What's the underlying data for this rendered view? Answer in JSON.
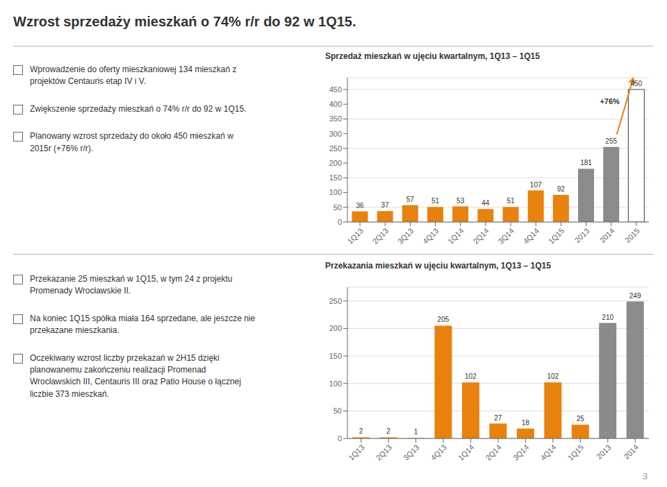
{
  "title": "Wzrost sprzedaży mieszkań o 74% r/r do 92 w 1Q15.",
  "annotations": [
    "3"
  ],
  "chart_data": [
    {
      "type": "bar",
      "title": "Sprzedaż mieszkań w ujęciu kwartalnym, 1Q13 – 1Q15",
      "categories": [
        "1Q13",
        "2Q13",
        "3Q13",
        "4Q13",
        "1Q14",
        "2Q14",
        "3Q14",
        "4Q14",
        "1Q15",
        "2013",
        "2014",
        "2015"
      ],
      "values": [
        36,
        37,
        57,
        51,
        53,
        44,
        51,
        107,
        92,
        181,
        255,
        450
      ],
      "colors": [
        "#E8820C",
        "#E8820C",
        "#E8820C",
        "#E8820C",
        "#E8820C",
        "#E8820C",
        "#E8820C",
        "#E8820C",
        "#E8820C",
        "#8B8B8B",
        "#8B8B8B",
        "#FFFFFF"
      ],
      "ylim": [
        0,
        490
      ],
      "yticks": [
        0,
        50,
        100,
        150,
        200,
        250,
        300,
        350,
        400,
        450
      ],
      "grid": true,
      "data_labels": true,
      "annotations": [
        "Wprowadzenie do oferty mieszkaniowej 134 mieszkań z\nprojektów Centauris etap IV i V.",
        "Zwiększenie sprzedaży mieszkań o 74% r/r do 92 w 1Q15.",
        "Planowany wzrost sprzedaży do około 450 mieszkań w\n2015r (+76% r/r).",
        {
          "text": "+76%",
          "color": "#E8820C"
        }
      ]
    },
    {
      "type": "bar",
      "title": "Przekazania mieszkań w ujęciu kwartalnym, 1Q13 – 1Q15",
      "categories": [
        "1Q13",
        "2Q13",
        "3Q13",
        "4Q13",
        "1Q14",
        "2Q14",
        "3Q14",
        "4Q14",
        "1Q15",
        "2013",
        "2014"
      ],
      "values": [
        2,
        2,
        1,
        205,
        102,
        27,
        18,
        102,
        25,
        210,
        249
      ],
      "colors": [
        "#E8820C",
        "#E8820C",
        "#E8820C",
        "#E8820C",
        "#E8820C",
        "#E8820C",
        "#E8820C",
        "#E8820C",
        "#E8820C",
        "#8B8B8B",
        "#8B8B8B"
      ],
      "ylim": [
        0,
        275
      ],
      "yticks": [
        0,
        50,
        100,
        150,
        200,
        250
      ],
      "grid": true,
      "data_labels": true,
      "annotations": [
        "Przekazanie 25 mieszkań w 1Q15, w tym 24 z projektu\nPromenady Wrocławskie II.",
        "Na koniec 1Q15 spółka miała 164 sprzedane, ale jeszcze nie\nprzekazane mieszkania.",
        "Oczekiwany wzrost liczby przekazań w 2H15 dzięki\nplanowanemu zakończeniu realizacji Promenad\nWrocławskich III, Centauris III oraz Patio House o łącznej\nliczbie 373 mieszkań."
      ]
    }
  ]
}
